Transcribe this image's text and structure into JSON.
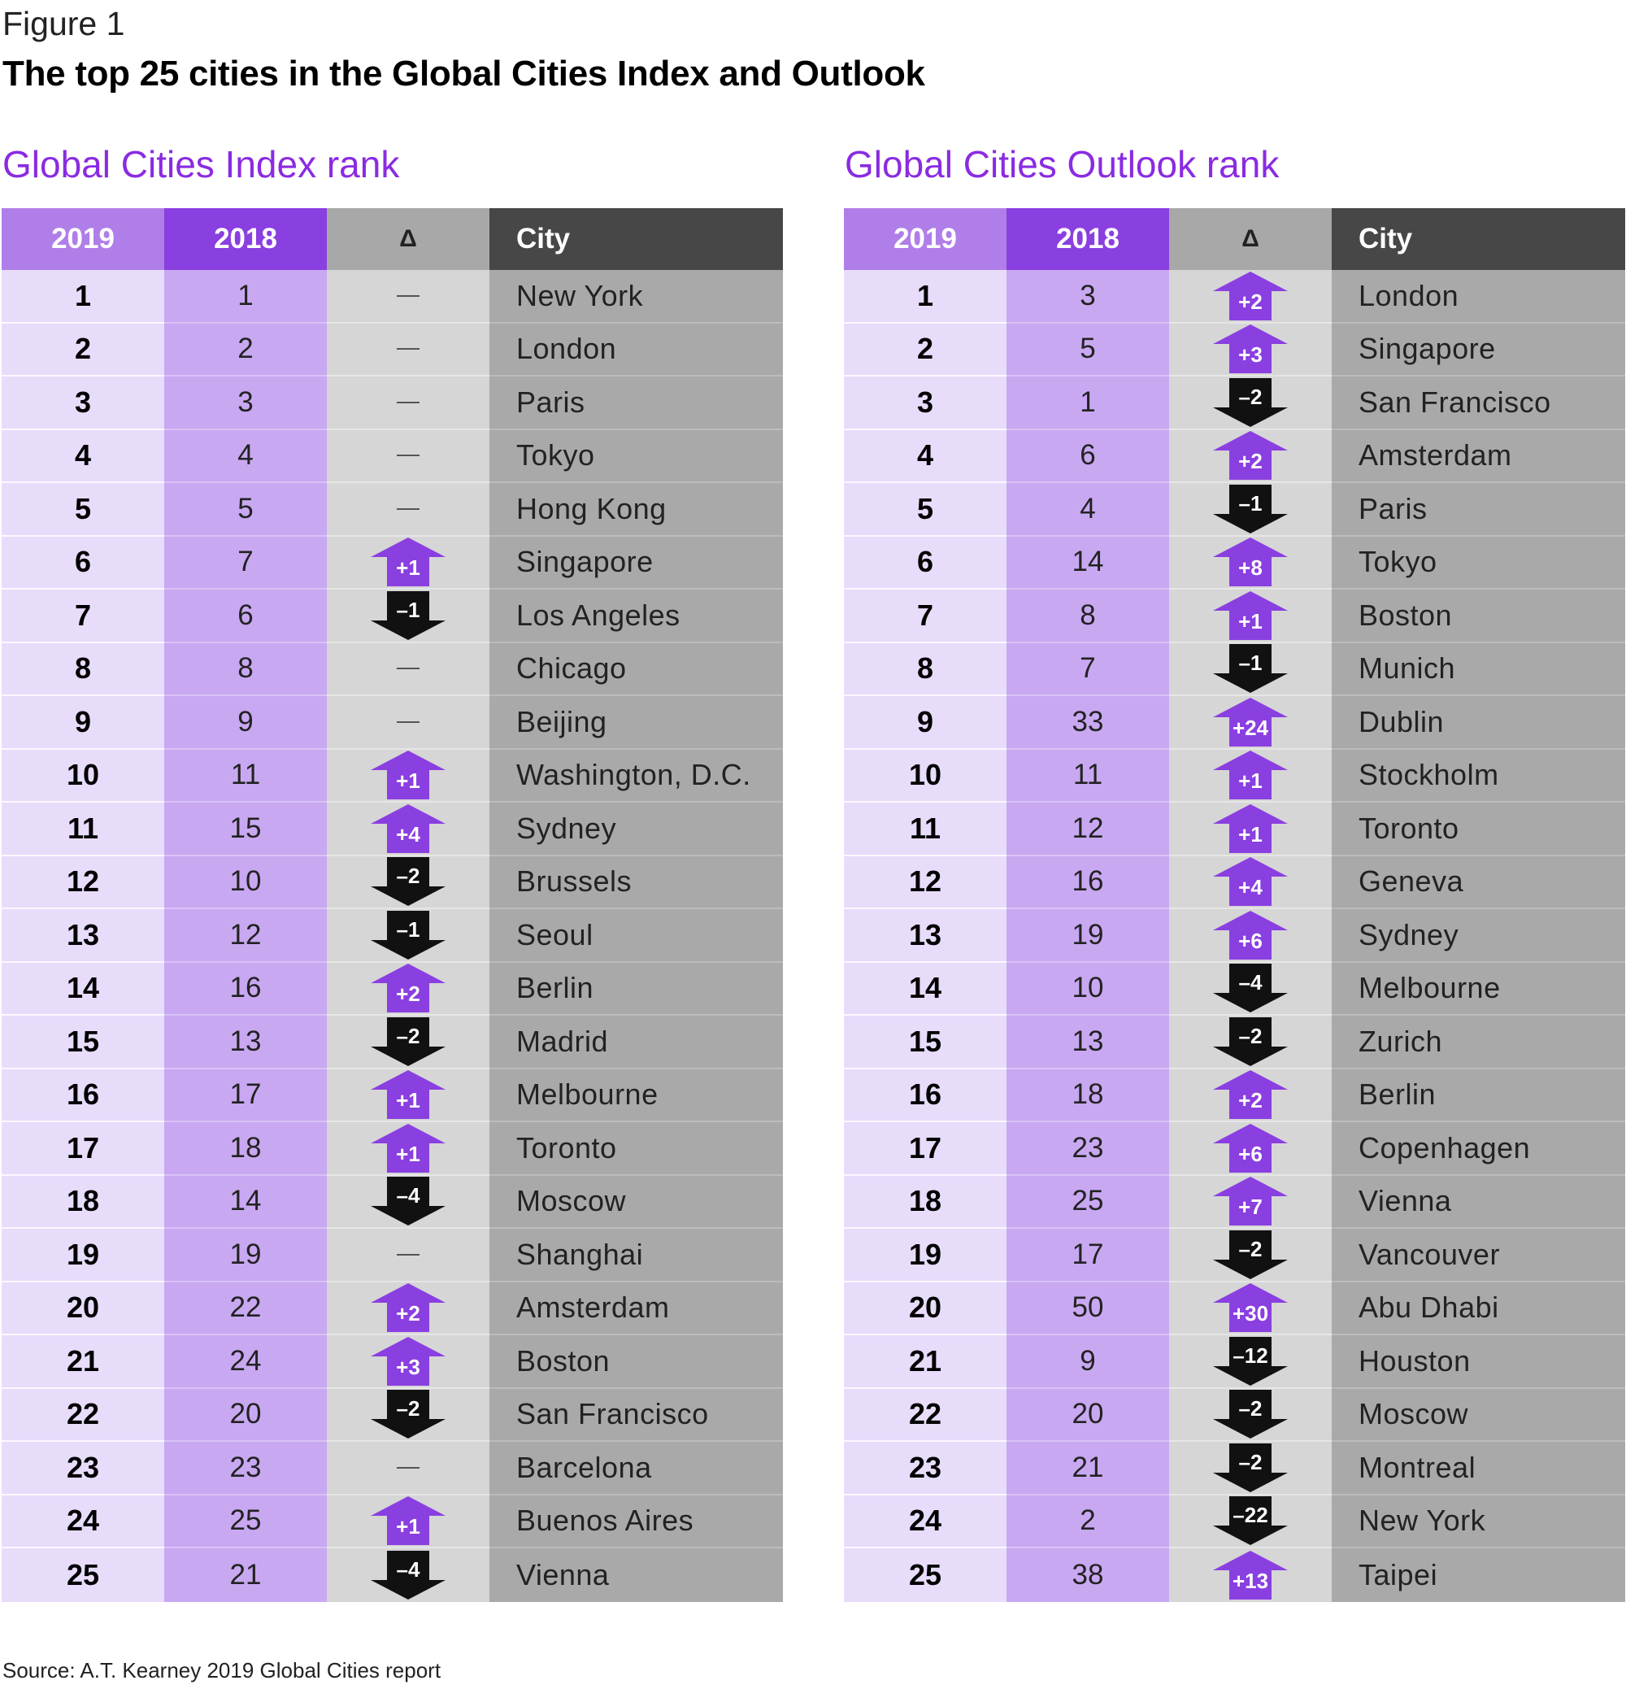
{
  "figure_label": "Figure 1",
  "title": "The top 25 cities in the Global Cities Index and Outlook",
  "source": "Source: A.T. Kearney 2019 Global Cities report",
  "colors": {
    "up_arrow": "#8a3fe0",
    "down_arrow": "#111111",
    "section_title": "#8a2be2"
  },
  "chart_data": [
    {
      "type": "table",
      "title": "Global Cities Index rank",
      "columns": [
        "2019",
        "2018",
        "Δ",
        "City"
      ],
      "rows": [
        {
          "r2019": "1",
          "r2018": "1",
          "delta": "",
          "city": "New York"
        },
        {
          "r2019": "2",
          "r2018": "2",
          "delta": "",
          "city": "London"
        },
        {
          "r2019": "3",
          "r2018": "3",
          "delta": "",
          "city": "Paris"
        },
        {
          "r2019": "4",
          "r2018": "4",
          "delta": "",
          "city": "Tokyo"
        },
        {
          "r2019": "5",
          "r2018": "5",
          "delta": "",
          "city": "Hong Kong"
        },
        {
          "r2019": "6",
          "r2018": "7",
          "delta": "+1",
          "city": "Singapore"
        },
        {
          "r2019": "7",
          "r2018": "6",
          "delta": "–1",
          "city": "Los Angeles"
        },
        {
          "r2019": "8",
          "r2018": "8",
          "delta": "",
          "city": "Chicago"
        },
        {
          "r2019": "9",
          "r2018": "9",
          "delta": "",
          "city": "Beijing"
        },
        {
          "r2019": "10",
          "r2018": "11",
          "delta": "+1",
          "city": "Washington, D.C."
        },
        {
          "r2019": "11",
          "r2018": "15",
          "delta": "+4",
          "city": "Sydney"
        },
        {
          "r2019": "12",
          "r2018": "10",
          "delta": "–2",
          "city": "Brussels"
        },
        {
          "r2019": "13",
          "r2018": "12",
          "delta": "–1",
          "city": "Seoul"
        },
        {
          "r2019": "14",
          "r2018": "16",
          "delta": "+2",
          "city": "Berlin"
        },
        {
          "r2019": "15",
          "r2018": "13",
          "delta": "–2",
          "city": "Madrid"
        },
        {
          "r2019": "16",
          "r2018": "17",
          "delta": "+1",
          "city": "Melbourne"
        },
        {
          "r2019": "17",
          "r2018": "18",
          "delta": "+1",
          "city": "Toronto"
        },
        {
          "r2019": "18",
          "r2018": "14",
          "delta": "–4",
          "city": "Moscow"
        },
        {
          "r2019": "19",
          "r2018": "19",
          "delta": "",
          "city": "Shanghai"
        },
        {
          "r2019": "20",
          "r2018": "22",
          "delta": "+2",
          "city": "Amsterdam"
        },
        {
          "r2019": "21",
          "r2018": "24",
          "delta": "+3",
          "city": "Boston"
        },
        {
          "r2019": "22",
          "r2018": "20",
          "delta": "–2",
          "city": "San Francisco"
        },
        {
          "r2019": "23",
          "r2018": "23",
          "delta": "",
          "city": "Barcelona"
        },
        {
          "r2019": "24",
          "r2018": "25",
          "delta": "+1",
          "city": "Buenos Aires"
        },
        {
          "r2019": "25",
          "r2018": "21",
          "delta": "–4",
          "city": "Vienna"
        }
      ]
    },
    {
      "type": "table",
      "title": "Global Cities Outlook rank",
      "columns": [
        "2019",
        "2018",
        "Δ",
        "City"
      ],
      "rows": [
        {
          "r2019": "1",
          "r2018": "3",
          "delta": "+2",
          "city": "London"
        },
        {
          "r2019": "2",
          "r2018": "5",
          "delta": "+3",
          "city": "Singapore"
        },
        {
          "r2019": "3",
          "r2018": "1",
          "delta": "–2",
          "city": "San Francisco"
        },
        {
          "r2019": "4",
          "r2018": "6",
          "delta": "+2",
          "city": "Amsterdam"
        },
        {
          "r2019": "5",
          "r2018": "4",
          "delta": "–1",
          "city": "Paris"
        },
        {
          "r2019": "6",
          "r2018": "14",
          "delta": "+8",
          "city": "Tokyo"
        },
        {
          "r2019": "7",
          "r2018": "8",
          "delta": "+1",
          "city": "Boston"
        },
        {
          "r2019": "8",
          "r2018": "7",
          "delta": "–1",
          "city": "Munich"
        },
        {
          "r2019": "9",
          "r2018": "33",
          "delta": "+24",
          "city": "Dublin"
        },
        {
          "r2019": "10",
          "r2018": "11",
          "delta": "+1",
          "city": "Stockholm"
        },
        {
          "r2019": "11",
          "r2018": "12",
          "delta": "+1",
          "city": "Toronto"
        },
        {
          "r2019": "12",
          "r2018": "16",
          "delta": "+4",
          "city": "Geneva"
        },
        {
          "r2019": "13",
          "r2018": "19",
          "delta": "+6",
          "city": "Sydney"
        },
        {
          "r2019": "14",
          "r2018": "10",
          "delta": "–4",
          "city": "Melbourne"
        },
        {
          "r2019": "15",
          "r2018": "13",
          "delta": "–2",
          "city": "Zurich"
        },
        {
          "r2019": "16",
          "r2018": "18",
          "delta": "+2",
          "city": "Berlin"
        },
        {
          "r2019": "17",
          "r2018": "23",
          "delta": "+6",
          "city": "Copenhagen"
        },
        {
          "r2019": "18",
          "r2018": "25",
          "delta": "+7",
          "city": "Vienna"
        },
        {
          "r2019": "19",
          "r2018": "17",
          "delta": "–2",
          "city": "Vancouver"
        },
        {
          "r2019": "20",
          "r2018": "50",
          "delta": "+30",
          "city": "Abu Dhabi"
        },
        {
          "r2019": "21",
          "r2018": "9",
          "delta": "–12",
          "city": "Houston"
        },
        {
          "r2019": "22",
          "r2018": "20",
          "delta": "–2",
          "city": "Moscow"
        },
        {
          "r2019": "23",
          "r2018": "21",
          "delta": "–2",
          "city": "Montreal"
        },
        {
          "r2019": "24",
          "r2018": "2",
          "delta": "–22",
          "city": "New York"
        },
        {
          "r2019": "25",
          "r2018": "38",
          "delta": "+13",
          "city": "Taipei"
        }
      ]
    }
  ]
}
